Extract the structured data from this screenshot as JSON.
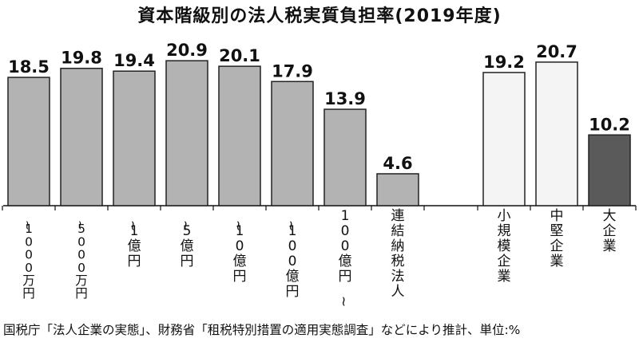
{
  "chart_data": {
    "type": "bar",
    "title": "資本階級別の法人税実質負担率(2019年度)",
    "source": "国税庁「法人企業の実態」、財務省「租税特別措置の適用実態調査」などにより推計、単位:%",
    "groups": [
      {
        "categories": [
          "~1000万円",
          "~5000万円",
          "~1億円",
          "~5億円",
          "~10億円",
          "~100億円",
          "100億円~",
          "連結納税法人"
        ],
        "values": [
          18.5,
          19.8,
          19.4,
          20.9,
          20.1,
          17.9,
          13.9,
          4.6
        ],
        "colors": [
          "#b3b3b3",
          "#b3b3b3",
          "#b3b3b3",
          "#b3b3b3",
          "#b3b3b3",
          "#b3b3b3",
          "#b3b3b3",
          "#b3b3b3"
        ]
      },
      {
        "categories": [
          "小規模企業",
          "中堅企業",
          "大企業"
        ],
        "values": [
          19.2,
          20.7,
          10.2
        ],
        "colors": [
          "#f4f4f4",
          "#f4f4f4",
          "#5a5a5a"
        ]
      }
    ],
    "ylim": [
      0,
      25
    ],
    "grid": false,
    "legend": "none"
  }
}
